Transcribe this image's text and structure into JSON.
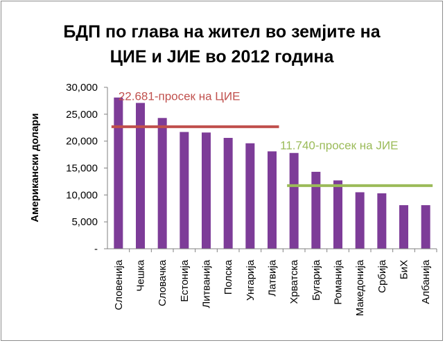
{
  "chart_data": {
    "type": "bar",
    "title_lines": [
      "БДП по глава на жител во земјите на",
      "ЦИЕ и ЈИЕ  во 2012 година"
    ],
    "ylabel": "Американски  долари",
    "xlabel": "",
    "ylim": [
      0,
      30000
    ],
    "y_ticks": [
      {
        "value": 0,
        "label": "-"
      },
      {
        "value": 5000,
        "label": "5,000"
      },
      {
        "value": 10000,
        "label": "10,000"
      },
      {
        "value": 15000,
        "label": "15,000"
      },
      {
        "value": 20000,
        "label": "20,000"
      },
      {
        "value": 25000,
        "label": "25,000"
      },
      {
        "value": 30000,
        "label": "30,000"
      }
    ],
    "categories": [
      "Словенија",
      "Чешка",
      "Словачка",
      "Естонија",
      "Литванија",
      "Полска",
      "Унгарија",
      "Латвија",
      "Хрватска",
      "Бугарија",
      "Романија",
      "Македонија",
      "Србија",
      "БиХ",
      "Албанија"
    ],
    "values": [
      28100,
      27100,
      24300,
      21700,
      21600,
      20600,
      19600,
      18100,
      17800,
      14300,
      12700,
      10500,
      10300,
      8100,
      8100
    ],
    "grid": false,
    "bar_color": "#7d3c98",
    "reference_lines": [
      {
        "label": "22.681-просек на ЦИЕ",
        "value": 22681,
        "from_category": 0,
        "to_category": 7,
        "color": "#c0504d"
      },
      {
        "label": "11.740-просек на ЈИЕ",
        "value": 11740,
        "from_category": 8,
        "to_category": 14,
        "color": "#9bbb59"
      }
    ]
  }
}
